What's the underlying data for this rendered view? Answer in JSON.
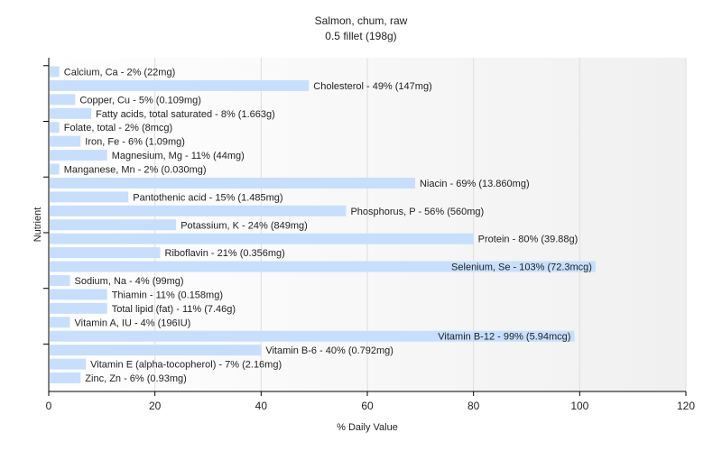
{
  "chart_data": {
    "type": "bar",
    "orientation": "horizontal",
    "title": "Salmon, chum, raw",
    "subtitle": "0.5 fillet (198g)",
    "xlabel": "% Daily Value",
    "ylabel": "Nutrient",
    "xlim": [
      0,
      120
    ],
    "xticks": [
      0,
      20,
      40,
      60,
      80,
      100,
      120
    ],
    "grid": true,
    "bar_color": "#c7dffc",
    "categories": [
      "Calcium, Ca",
      "Cholesterol",
      "Copper, Cu",
      "Fatty acids, total saturated",
      "Folate, total",
      "Iron, Fe",
      "Magnesium, Mg",
      "Manganese, Mn",
      "Niacin",
      "Pantothenic acid",
      "Phosphorus, P",
      "Potassium, K",
      "Protein",
      "Riboflavin",
      "Selenium, Se",
      "Sodium, Na",
      "Thiamin",
      "Total lipid (fat)",
      "Vitamin A, IU",
      "Vitamin B-12",
      "Vitamin B-6",
      "Vitamin E (alpha-tocopherol)",
      "Zinc, Zn"
    ],
    "values": [
      2,
      49,
      5,
      8,
      2,
      6,
      11,
      2,
      69,
      15,
      56,
      24,
      80,
      21,
      103,
      4,
      11,
      11,
      4,
      99,
      40,
      7,
      6
    ],
    "labels": [
      "Calcium, Ca - 2% (22mg)",
      "Cholesterol - 49% (147mg)",
      "Copper, Cu - 5% (0.109mg)",
      "Fatty acids, total saturated - 8% (1.663g)",
      "Folate, total - 2% (8mcg)",
      "Iron, Fe - 6% (1.09mg)",
      "Magnesium, Mg - 11% (44mg)",
      "Manganese, Mn - 2% (0.030mg)",
      "Niacin - 69% (13.860mg)",
      "Pantothenic acid - 15% (1.485mg)",
      "Phosphorus, P - 56% (560mg)",
      "Potassium, K - 24% (849mg)",
      "Protein - 80% (39.88g)",
      "Riboflavin - 21% (0.356mg)",
      "Selenium, Se - 103% (72.3mcg)",
      "Sodium, Na - 4% (99mg)",
      "Thiamin - 11% (0.158mg)",
      "Total lipid (fat) - 11% (7.46g)",
      "Vitamin A, IU - 4% (196IU)",
      "Vitamin B-12 - 99% (5.94mcg)",
      "Vitamin B-6 - 40% (0.792mg)",
      "Vitamin E (alpha-tocopherol) - 7% (2.16mg)",
      "Zinc, Zn - 6% (0.93mg)"
    ]
  }
}
